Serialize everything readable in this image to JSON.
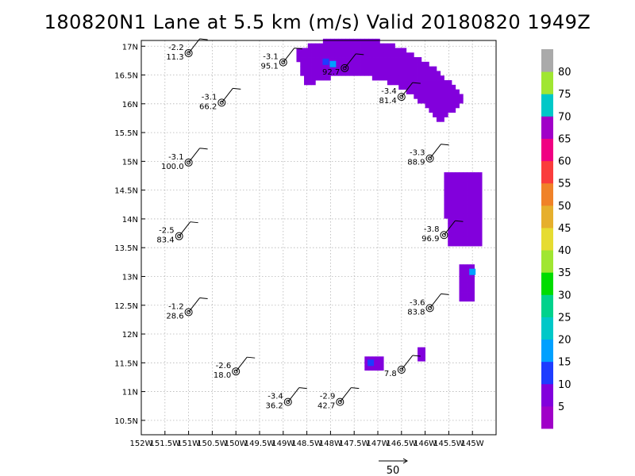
{
  "title": "180820N1 Lane at 5.5 km (m/s) Valid 20180820 1949Z",
  "map": {
    "lon_range": [
      -152,
      -144.5
    ],
    "lat_range": [
      10.25,
      17.1
    ],
    "x_ticks": [
      {
        "value": -152,
        "label": "152W"
      },
      {
        "value": -151.5,
        "label": "151.5W"
      },
      {
        "value": -151,
        "label": "151W"
      },
      {
        "value": -150.5,
        "label": "150.5W"
      },
      {
        "value": -150,
        "label": "150W"
      },
      {
        "value": -149.5,
        "label": "149.5W"
      },
      {
        "value": -149,
        "label": "149W"
      },
      {
        "value": -148.5,
        "label": "148.5W"
      },
      {
        "value": -148,
        "label": "148W"
      },
      {
        "value": -147.5,
        "label": "147.5W"
      },
      {
        "value": -147,
        "label": "147W"
      },
      {
        "value": -146.5,
        "label": "146.5W"
      },
      {
        "value": -146,
        "label": "146W"
      },
      {
        "value": -145.5,
        "label": "145.5W"
      },
      {
        "value": -145,
        "label": "145W"
      }
    ],
    "y_ticks": [
      {
        "value": 17,
        "label": "17N"
      },
      {
        "value": 16.5,
        "label": "16.5N"
      },
      {
        "value": 16,
        "label": "16N"
      },
      {
        "value": 15.5,
        "label": "15.5N"
      },
      {
        "value": 15,
        "label": "15N"
      },
      {
        "value": 14.5,
        "label": "14.5N"
      },
      {
        "value": 14,
        "label": "14N"
      },
      {
        "value": 13.5,
        "label": "13.5N"
      },
      {
        "value": 13,
        "label": "13N"
      },
      {
        "value": 12.5,
        "label": "12.5N"
      },
      {
        "value": 12,
        "label": "12N"
      },
      {
        "value": 11.5,
        "label": "11.5N"
      },
      {
        "value": 11,
        "label": "11N"
      },
      {
        "value": 10.5,
        "label": "10.5N"
      }
    ],
    "grid": true
  },
  "stations": [
    {
      "lon": -151.0,
      "lat": 16.88,
      "top": "-2.2",
      "bottom": "11.3"
    },
    {
      "lon": -149.0,
      "lat": 16.72,
      "top": "-3.1",
      "bottom": "95.1"
    },
    {
      "lon": -147.7,
      "lat": 16.62,
      "top": "",
      "bottom": "92.7"
    },
    {
      "lon": -150.3,
      "lat": 16.02,
      "top": "-3.1",
      "bottom": "66.2"
    },
    {
      "lon": -146.5,
      "lat": 16.12,
      "top": "-3.4",
      "bottom": "81.4"
    },
    {
      "lon": -151.0,
      "lat": 14.98,
      "top": "-3.1",
      "bottom": "100.0"
    },
    {
      "lon": -145.9,
      "lat": 15.05,
      "top": "-3.3",
      "bottom": "88.9"
    },
    {
      "lon": -151.2,
      "lat": 13.7,
      "top": "-2.5",
      "bottom": "83.4"
    },
    {
      "lon": -145.6,
      "lat": 13.72,
      "top": "-3.8",
      "bottom": "96.9"
    },
    {
      "lon": -151.0,
      "lat": 12.38,
      "top": "-1.2",
      "bottom": "28.6"
    },
    {
      "lon": -145.9,
      "lat": 12.45,
      "top": "-3.6",
      "bottom": "83.8"
    },
    {
      "lon": -150.0,
      "lat": 11.35,
      "top": "-2.6",
      "bottom": "18.0"
    },
    {
      "lon": -146.5,
      "lat": 11.38,
      "top": "",
      "bottom": "7.8"
    },
    {
      "lon": -148.9,
      "lat": 10.82,
      "top": "-3.4",
      "bottom": "36.2"
    },
    {
      "lon": -147.8,
      "lat": 10.82,
      "top": "-2.9",
      "bottom": "42.7"
    }
  ],
  "wind_field": {
    "cell_deg": 0.08,
    "patches": [
      {
        "region": "north-arc",
        "value": 7
      },
      {
        "region": "east-band",
        "value": 7
      },
      {
        "region": "east-lower",
        "value": 7
      },
      {
        "region": "south-east",
        "value": 7
      }
    ],
    "accents": [
      {
        "lon": -148.1,
        "lat": 16.73,
        "value": 12
      },
      {
        "lon": -147.95,
        "lat": 16.69,
        "value": 17
      },
      {
        "lon": -145.0,
        "lat": 13.08,
        "value": 17
      },
      {
        "lon": -147.15,
        "lat": 11.5,
        "value": 12
      }
    ]
  },
  "colorbar": {
    "colors": [
      "#a000c8",
      "#8200dc",
      "#1e3cff",
      "#00a0ff",
      "#00c8c8",
      "#00d28c",
      "#00dc00",
      "#a0e632",
      "#e6dc32",
      "#e6af2d",
      "#f08228",
      "#fa3c3c",
      "#f00082",
      "#a000c8",
      "#00c8c8",
      "#a0e632",
      "#aaaaaa"
    ],
    "labels": [
      "5",
      "10",
      "15",
      "20",
      "25",
      "30",
      "35",
      "40",
      "45",
      "50",
      "55",
      "60",
      "65",
      "70",
      "75",
      "80"
    ]
  },
  "scale_vector": {
    "label": "50"
  }
}
